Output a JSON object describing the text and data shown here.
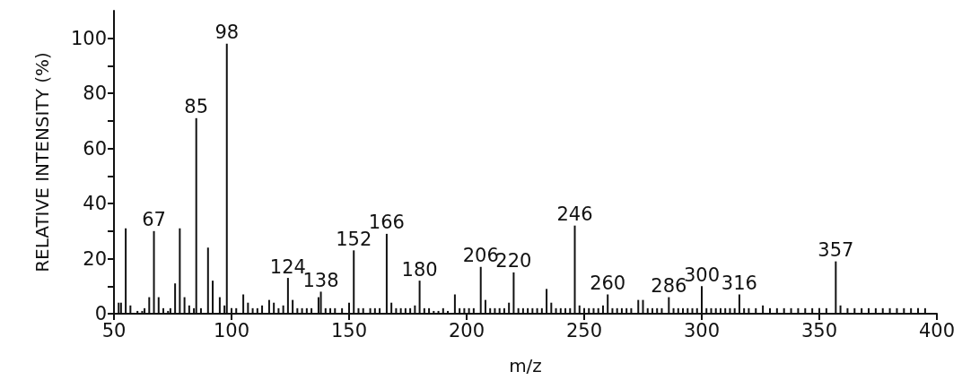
{
  "chart_data": {
    "type": "bar",
    "xlabel": "m/z",
    "ylabel": "RELATIVE INTENSITY (%)",
    "color": "#111111",
    "grid": false,
    "xlim": [
      50,
      400
    ],
    "xticks": [
      50,
      100,
      150,
      200,
      250,
      300,
      350,
      400
    ],
    "ylim": [
      0,
      110
    ],
    "yticks": [
      0,
      {
        "value": 10,
        "label": null
      },
      20,
      {
        "value": 30,
        "label": null
      },
      40,
      {
        "value": 50,
        "label": null
      },
      60,
      {
        "value": 70,
        "label": null
      },
      80,
      {
        "value": 90,
        "label": null
      },
      100
    ],
    "x": [
      52,
      53,
      55,
      57,
      60,
      62,
      63,
      65,
      67,
      69,
      71,
      73,
      74,
      76,
      78,
      80,
      82,
      84,
      85,
      87,
      90,
      92,
      95,
      97,
      98,
      100,
      102,
      105,
      107,
      109,
      111,
      113,
      116,
      118,
      120,
      122,
      124,
      126,
      128,
      130,
      132,
      134,
      137,
      138,
      140,
      142,
      144,
      147,
      150,
      152,
      154,
      156,
      159,
      161,
      163,
      166,
      168,
      170,
      172,
      174,
      176,
      178,
      180,
      182,
      184,
      186,
      188,
      190,
      192,
      195,
      197,
      199,
      201,
      203,
      206,
      208,
      210,
      212,
      214,
      216,
      218,
      220,
      222,
      224,
      226,
      228,
      230,
      232,
      234,
      236,
      238,
      240,
      242,
      244,
      246,
      248,
      250,
      252,
      254,
      256,
      258,
      260,
      262,
      264,
      266,
      268,
      270,
      273,
      275,
      277,
      279,
      281,
      283,
      286,
      288,
      290,
      292,
      294,
      296,
      298,
      300,
      302,
      304,
      306,
      308,
      310,
      312,
      314,
      316,
      318,
      320,
      323,
      326,
      329,
      332,
      335,
      338,
      341,
      344,
      347,
      350,
      353,
      357,
      359,
      362,
      365,
      368,
      371,
      374,
      377,
      380,
      383,
      386,
      389,
      392,
      395
    ],
    "values": [
      4,
      4,
      31,
      3,
      1,
      1,
      2,
      6,
      30,
      6,
      2,
      1,
      2,
      11,
      31,
      6,
      3,
      2,
      71,
      2,
      24,
      12,
      6,
      3,
      98,
      2,
      2,
      7,
      4,
      2,
      2,
      3,
      5,
      4,
      2,
      3,
      13,
      5,
      2,
      2,
      2,
      2,
      6,
      8,
      2,
      2,
      2,
      2,
      4,
      23,
      2,
      2,
      2,
      2,
      2,
      29,
      4,
      2,
      2,
      2,
      2,
      3,
      12,
      2,
      2,
      1,
      1,
      2,
      1,
      7,
      2,
      2,
      2,
      2,
      17,
      5,
      2,
      2,
      2,
      2,
      4,
      15,
      2,
      2,
      2,
      2,
      2,
      2,
      9,
      4,
      2,
      2,
      2,
      2,
      32,
      3,
      2,
      2,
      2,
      2,
      3,
      7,
      2,
      2,
      2,
      2,
      2,
      5,
      5,
      2,
      2,
      2,
      2,
      6,
      2,
      2,
      2,
      2,
      2,
      2,
      10,
      2,
      2,
      2,
      2,
      2,
      2,
      2,
      7,
      2,
      2,
      2,
      3,
      2,
      2,
      2,
      2,
      2,
      2,
      2,
      2,
      2,
      19,
      3,
      2,
      2,
      2,
      2,
      2,
      2,
      2,
      2,
      2,
      2,
      2,
      2
    ],
    "annotations": [
      {
        "text": "67",
        "x": 67,
        "y": 30
      },
      {
        "text": "85",
        "x": 85,
        "y": 71
      },
      {
        "text": "98",
        "x": 98,
        "y": 98
      },
      {
        "text": "124",
        "x": 124,
        "y": 13
      },
      {
        "text": "138",
        "x": 138,
        "y": 8
      },
      {
        "text": "152",
        "x": 152,
        "y": 23
      },
      {
        "text": "166",
        "x": 166,
        "y": 29
      },
      {
        "text": "180",
        "x": 180,
        "y": 12
      },
      {
        "text": "206",
        "x": 206,
        "y": 17
      },
      {
        "text": "220",
        "x": 220,
        "y": 15
      },
      {
        "text": "246",
        "x": 246,
        "y": 32
      },
      {
        "text": "260",
        "x": 260,
        "y": 7
      },
      {
        "text": "286",
        "x": 286,
        "y": 6
      },
      {
        "text": "300",
        "x": 300,
        "y": 10
      },
      {
        "text": "316",
        "x": 316,
        "y": 7
      },
      {
        "text": "357",
        "x": 357,
        "y": 19
      }
    ]
  }
}
